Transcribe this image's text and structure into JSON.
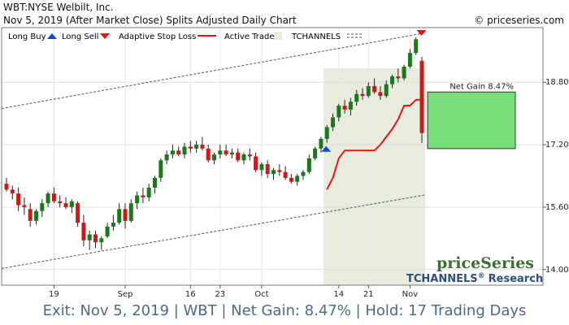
{
  "header": {
    "symbol_title": "WBT:NYSE Welbilt, Inc.",
    "subtitle": "Nov 5, 2019 (After Market Close)  Splits Adjusted Daily Chart",
    "copyright": "© priceseries.com"
  },
  "legend": {
    "long_buy": "Long Buy",
    "long_sell": "Long Sell",
    "adaptive_stop": "Adaptive Stop Loss",
    "active_trade": "Active Trade",
    "tchannels": "TCHANNELS"
  },
  "colors": {
    "up_candle": "#1a7a1a",
    "down_candle": "#cc1a1a",
    "stop_line": "#ee1111",
    "active_trade_bg": "#e8ecdf",
    "gain_box": "#77dd77",
    "channel": "#445566",
    "buy_arrow": "#1144dd",
    "sell_arrow": "#ee1111",
    "brand_green": "#3c6e34",
    "brand_blue": "#2e4e7e",
    "footer_text": "#4a6a8a"
  },
  "gain_label": "Net Gain 8.47%",
  "brand": {
    "name": "priceSeries",
    "tagline": "TCHANNELS",
    "reg": "®",
    "research": "Research"
  },
  "footer": "Exit: Nov 5, 2019 | WBT | Net Gain: 8.47% | Hold: 17 Trading Days",
  "chart_data": {
    "type": "candlestick",
    "ylim": [
      13.6,
      20.2
    ],
    "y_ticks": [
      14.0,
      15.6,
      17.2,
      18.8
    ],
    "y_tick_labels": [
      "14.00",
      "15.60",
      "17.20",
      "18.80"
    ],
    "x_tick_labels": [
      "19",
      "Sep",
      "16",
      "23",
      "Oct",
      "14",
      "21",
      "Nov"
    ],
    "x_tick_index": [
      8,
      20,
      31,
      36,
      43,
      56,
      61,
      68
    ],
    "candles": [
      {
        "o": 16.2,
        "h": 16.35,
        "l": 16.0,
        "c": 16.05
      },
      {
        "o": 16.05,
        "h": 16.15,
        "l": 15.8,
        "c": 15.95
      },
      {
        "o": 15.95,
        "h": 16.1,
        "l": 15.5,
        "c": 15.65
      },
      {
        "o": 15.65,
        "h": 15.85,
        "l": 15.4,
        "c": 15.6
      },
      {
        "o": 15.55,
        "h": 15.7,
        "l": 15.1,
        "c": 15.25
      },
      {
        "o": 15.25,
        "h": 15.55,
        "l": 15.15,
        "c": 15.5
      },
      {
        "o": 15.5,
        "h": 15.8,
        "l": 15.35,
        "c": 15.7
      },
      {
        "o": 15.7,
        "h": 16.0,
        "l": 15.6,
        "c": 15.95
      },
      {
        "o": 15.95,
        "h": 16.1,
        "l": 15.7,
        "c": 15.75
      },
      {
        "o": 15.75,
        "h": 15.9,
        "l": 15.6,
        "c": 15.7
      },
      {
        "o": 15.7,
        "h": 15.85,
        "l": 15.55,
        "c": 15.6
      },
      {
        "o": 15.6,
        "h": 15.8,
        "l": 15.45,
        "c": 15.75
      },
      {
        "o": 15.7,
        "h": 15.75,
        "l": 15.1,
        "c": 15.2
      },
      {
        "o": 15.2,
        "h": 15.4,
        "l": 14.6,
        "c": 14.75
      },
      {
        "o": 14.75,
        "h": 15.0,
        "l": 14.5,
        "c": 14.9
      },
      {
        "o": 14.9,
        "h": 15.0,
        "l": 14.55,
        "c": 14.7
      },
      {
        "o": 14.7,
        "h": 14.85,
        "l": 14.5,
        "c": 14.8
      },
      {
        "o": 14.85,
        "h": 15.2,
        "l": 14.8,
        "c": 15.1
      },
      {
        "o": 15.1,
        "h": 15.4,
        "l": 15.0,
        "c": 15.2
      },
      {
        "o": 15.2,
        "h": 15.7,
        "l": 15.15,
        "c": 15.55
      },
      {
        "o": 15.55,
        "h": 15.7,
        "l": 15.05,
        "c": 15.25
      },
      {
        "o": 15.25,
        "h": 15.8,
        "l": 15.2,
        "c": 15.7
      },
      {
        "o": 15.7,
        "h": 16.0,
        "l": 15.55,
        "c": 15.9
      },
      {
        "o": 15.9,
        "h": 16.1,
        "l": 15.7,
        "c": 15.85
      },
      {
        "o": 15.85,
        "h": 16.2,
        "l": 15.75,
        "c": 16.1
      },
      {
        "o": 16.1,
        "h": 16.4,
        "l": 15.95,
        "c": 16.35
      },
      {
        "o": 16.35,
        "h": 16.85,
        "l": 16.25,
        "c": 16.8
      },
      {
        "o": 16.8,
        "h": 17.05,
        "l": 16.7,
        "c": 16.95
      },
      {
        "o": 16.95,
        "h": 17.2,
        "l": 16.85,
        "c": 17.05
      },
      {
        "o": 17.05,
        "h": 17.15,
        "l": 16.9,
        "c": 16.95
      },
      {
        "o": 16.95,
        "h": 17.25,
        "l": 16.85,
        "c": 17.15
      },
      {
        "o": 17.15,
        "h": 17.3,
        "l": 17.0,
        "c": 17.1
      },
      {
        "o": 17.1,
        "h": 17.3,
        "l": 17.0,
        "c": 17.2
      },
      {
        "o": 17.2,
        "h": 17.4,
        "l": 17.05,
        "c": 17.1
      },
      {
        "o": 17.1,
        "h": 17.2,
        "l": 16.75,
        "c": 16.8
      },
      {
        "o": 16.8,
        "h": 17.0,
        "l": 16.7,
        "c": 16.95
      },
      {
        "o": 16.95,
        "h": 17.2,
        "l": 16.85,
        "c": 17.05
      },
      {
        "o": 17.05,
        "h": 17.2,
        "l": 16.9,
        "c": 16.95
      },
      {
        "o": 16.95,
        "h": 17.1,
        "l": 16.85,
        "c": 17.0
      },
      {
        "o": 17.0,
        "h": 17.1,
        "l": 16.75,
        "c": 16.8
      },
      {
        "o": 16.8,
        "h": 17.0,
        "l": 16.7,
        "c": 16.95
      },
      {
        "o": 16.95,
        "h": 17.1,
        "l": 16.8,
        "c": 16.9
      },
      {
        "o": 16.9,
        "h": 17.0,
        "l": 16.5,
        "c": 16.55
      },
      {
        "o": 16.55,
        "h": 16.75,
        "l": 16.4,
        "c": 16.7
      },
      {
        "o": 16.7,
        "h": 16.8,
        "l": 16.35,
        "c": 16.45
      },
      {
        "o": 16.45,
        "h": 16.6,
        "l": 16.3,
        "c": 16.55
      },
      {
        "o": 16.55,
        "h": 16.7,
        "l": 16.4,
        "c": 16.5
      },
      {
        "o": 16.5,
        "h": 16.65,
        "l": 16.3,
        "c": 16.35
      },
      {
        "o": 16.35,
        "h": 16.45,
        "l": 16.2,
        "c": 16.25
      },
      {
        "o": 16.25,
        "h": 16.45,
        "l": 16.15,
        "c": 16.4
      },
      {
        "o": 16.4,
        "h": 16.55,
        "l": 16.3,
        "c": 16.5
      },
      {
        "o": 16.5,
        "h": 16.95,
        "l": 16.45,
        "c": 16.85
      },
      {
        "o": 16.85,
        "h": 17.15,
        "l": 16.8,
        "c": 17.1
      },
      {
        "o": 17.1,
        "h": 17.4,
        "l": 17.0,
        "c": 17.35
      },
      {
        "o": 17.35,
        "h": 17.7,
        "l": 17.25,
        "c": 17.65
      },
      {
        "o": 17.65,
        "h": 18.0,
        "l": 17.55,
        "c": 17.9
      },
      {
        "o": 17.9,
        "h": 18.25,
        "l": 17.8,
        "c": 18.2
      },
      {
        "o": 18.2,
        "h": 18.35,
        "l": 18.0,
        "c": 18.1
      },
      {
        "o": 18.1,
        "h": 18.4,
        "l": 17.95,
        "c": 18.3
      },
      {
        "o": 18.3,
        "h": 18.6,
        "l": 18.2,
        "c": 18.5
      },
      {
        "o": 18.5,
        "h": 18.65,
        "l": 18.35,
        "c": 18.45
      },
      {
        "o": 18.45,
        "h": 18.8,
        "l": 18.4,
        "c": 18.7
      },
      {
        "o": 18.7,
        "h": 18.9,
        "l": 18.5,
        "c": 18.55
      },
      {
        "o": 18.55,
        "h": 18.7,
        "l": 18.35,
        "c": 18.45
      },
      {
        "o": 18.45,
        "h": 18.85,
        "l": 18.4,
        "c": 18.75
      },
      {
        "o": 18.75,
        "h": 19.0,
        "l": 18.65,
        "c": 18.95
      },
      {
        "o": 18.95,
        "h": 19.15,
        "l": 18.8,
        "c": 18.9
      },
      {
        "o": 18.9,
        "h": 19.25,
        "l": 18.85,
        "c": 19.2
      },
      {
        "o": 19.2,
        "h": 19.65,
        "l": 19.15,
        "c": 19.55
      },
      {
        "o": 19.55,
        "h": 19.95,
        "l": 19.5,
        "c": 19.9
      },
      {
        "o": 19.35,
        "h": 19.45,
        "l": 17.25,
        "c": 17.5
      }
    ],
    "stop_loss": {
      "start_index": 54,
      "values": [
        16.05,
        16.35,
        16.85,
        17.05,
        17.05,
        17.05,
        17.05,
        17.05,
        17.05,
        17.2,
        17.4,
        17.6,
        17.85,
        18.2,
        18.2,
        18.35,
        18.35
      ]
    },
    "entry_index": 54,
    "exit_index": 70,
    "channel_upper": [
      {
        "i": 0,
        "v": 18.15
      },
      {
        "i": 70,
        "v": 20.05
      }
    ],
    "channel_lower": [
      {
        "i": 0,
        "v": 14.05
      },
      {
        "i": 70,
        "v": 15.9
      }
    ],
    "net_gain_band": [
      17.1,
      18.55
    ]
  }
}
